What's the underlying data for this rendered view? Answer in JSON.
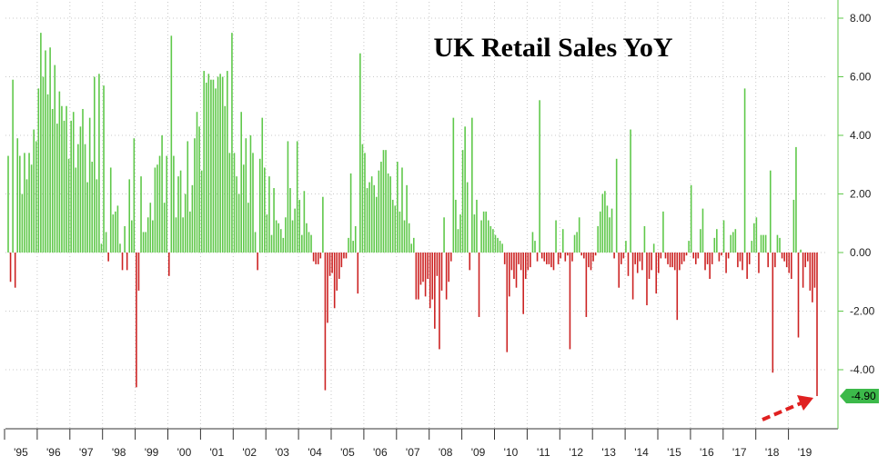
{
  "chart_data": {
    "type": "bar",
    "title": "UK Retail Sales YoY",
    "xlabel": "",
    "ylabel": "",
    "ylim": [
      -5.8,
      8.6
    ],
    "y_ticks": [
      "8.00",
      "6.00",
      "4.00",
      "2.00",
      "0.00",
      "-2.00",
      "-4.00"
    ],
    "x_ticks": [
      "'95",
      "'96",
      "'97",
      "'98",
      "'99",
      "'00",
      "'01",
      "'02",
      "'03",
      "'04",
      "'05",
      "'06",
      "'07",
      "'08",
      "'09",
      "'10",
      "'11",
      "'12",
      "'13",
      "'14",
      "'15",
      "'16",
      "'17",
      "'18",
      "'19"
    ],
    "last_value_label": "-4.90",
    "colors": {
      "positive": "#5fc84a",
      "negative": "#cc2222",
      "last_label_bg": "#3cb94a",
      "arrow": "#e02020",
      "grid": "#c9c9c9",
      "axis": "#5fc84a"
    },
    "series": [
      {
        "name": "UK Retail Sales YoY",
        "values": [
          3.3,
          -1.0,
          5.9,
          -1.2,
          3.9,
          3.3,
          2.0,
          3.4,
          2.5,
          3.4,
          3.0,
          4.2,
          3.8,
          5.6,
          7.5,
          6.0,
          6.9,
          5.4,
          7.0,
          4.9,
          6.4,
          4.4,
          5.5,
          5.0,
          4.5,
          5.0,
          3.2,
          4.5,
          4.8,
          2.9,
          3.7,
          4.3,
          4.9,
          3.7,
          2.4,
          4.6,
          3.1,
          6.0,
          2.5,
          6.1,
          0.3,
          5.7,
          0.7,
          -0.3,
          2.9,
          1.3,
          1.4,
          1.6,
          0.3,
          -0.6,
          0.9,
          -0.6,
          2.5,
          1.1,
          3.9,
          -4.6,
          -1.3,
          2.6,
          0.7,
          0.7,
          1.2,
          1.7,
          1.1,
          2.9,
          3.0,
          3.3,
          4.0,
          1.7,
          3.3,
          -0.8,
          7.4,
          3.3,
          1.2,
          2.6,
          2.8,
          1.2,
          2.0,
          3.8,
          1.4,
          2.3,
          3.9,
          4.8,
          4.3,
          2.8,
          6.2,
          5.8,
          6.1,
          5.9,
          5.9,
          5.6,
          6.0,
          6.1,
          6.0,
          5.0,
          6.2,
          3.4,
          7.5,
          3.4,
          2.6,
          2.0,
          4.8,
          3.0,
          3.9,
          1.7,
          4.0,
          3.4,
          0.7,
          -0.6,
          3.2,
          4.6,
          2.9,
          1.3,
          2.6,
          0.6,
          2.2,
          1.1,
          1.0,
          0.8,
          0.5,
          1.2,
          3.8,
          2.2,
          1.1,
          1.5,
          3.8,
          1.8,
          0.6,
          2.1,
          1.0,
          0.7,
          0.6,
          -0.3,
          -0.4,
          -0.4,
          -0.2,
          1.9,
          -4.7,
          -2.4,
          -0.8,
          -0.7,
          -1.9,
          -1.3,
          -0.9,
          -0.5,
          -0.2,
          -0.2,
          0.5,
          2.7,
          0.4,
          0.9,
          -1.4,
          6.8,
          3.7,
          3.4,
          2.2,
          2.4,
          2.6,
          2.3,
          1.9,
          2.8,
          3.1,
          3.5,
          3.5,
          2.7,
          2.6,
          1.8,
          1.6,
          3.1,
          1.4,
          2.9,
          1.1,
          2.3,
          1.0,
          0.3,
          0.5,
          -1.6,
          -1.6,
          -1.1,
          -1.0,
          -1.5,
          -0.9,
          -1.9,
          -1.6,
          -2.6,
          -0.8,
          -3.3,
          -1.3,
          1.2,
          -1.6,
          -1.0,
          -0.3,
          4.6,
          1.8,
          0.8,
          1.3,
          3.5,
          4.3,
          2.4,
          -0.6,
          4.6,
          1.3,
          1.8,
          -2.2,
          1.1,
          1.4,
          1.4,
          1.1,
          0.9,
          0.8,
          0.6,
          0.5,
          0.4,
          0.3,
          -0.4,
          -3.4,
          -1.5,
          -0.6,
          -0.9,
          -1.2,
          -0.4,
          -0.6,
          -2.1,
          -0.9,
          -0.6,
          -0.5,
          0.7,
          0.4,
          -0.3,
          5.2,
          -0.2,
          -0.3,
          -0.4,
          -0.4,
          -0.5,
          -0.6,
          1.1,
          -0.4,
          -0.2,
          0.8,
          -0.3,
          -0.1,
          -3.3,
          -0.3,
          0.6,
          0.7,
          1.2,
          -0.1,
          -0.2,
          -2.2,
          -0.5,
          -0.6,
          -0.3,
          -0.1,
          0.9,
          1.4,
          2.0,
          2.1,
          1.6,
          1.2,
          1.5,
          -0.2,
          3.2,
          -1.2,
          -0.4,
          -0.2,
          0.4,
          -0.8,
          4.2,
          -1.6,
          -0.4,
          -0.7,
          -0.3,
          -0.6,
          0.9,
          -1.8,
          -0.9,
          -0.6,
          0.3,
          -1.4,
          -0.7,
          -0.2,
          1.4,
          -0.2,
          -0.4,
          -0.5,
          -0.5,
          -0.6,
          -2.3,
          -0.6,
          -0.4,
          -0.3,
          -0.1,
          0.4,
          2.3,
          -0.2,
          -0.4,
          -0.2,
          0.8,
          1.5,
          -0.6,
          -0.4,
          -0.9,
          -0.4,
          0.5,
          0.8,
          -0.3,
          -0.1,
          1.1,
          -0.7,
          -0.2,
          0.6,
          0.7,
          0.8,
          -0.5,
          -0.3,
          -0.6,
          5.6,
          -0.9,
          -0.4,
          0.4,
          1.0,
          1.2,
          -0.7,
          0.6,
          0.6,
          0.6,
          -0.5,
          2.8,
          -4.1,
          -0.5,
          0.6,
          0.5,
          -0.2,
          -0.3,
          -0.5,
          -0.7,
          -0.9,
          1.8,
          3.6,
          -2.9,
          0.1,
          -1.2,
          -0.5,
          -0.3,
          -1.3,
          -1.7,
          -1.2,
          -4.9
        ]
      }
    ]
  }
}
